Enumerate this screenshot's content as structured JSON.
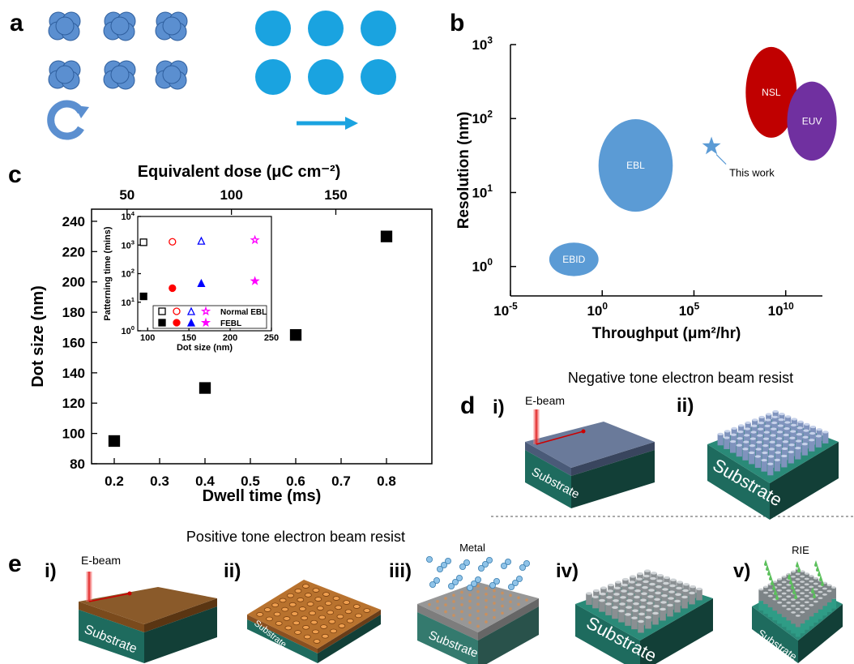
{
  "panel_labels": [
    "a",
    "b",
    "c",
    "d",
    "e"
  ],
  "chart_data": [
    {
      "type": "region",
      "xlabel": "Throughput (μm²/hr)",
      "ylabel": "Resolution (nm)",
      "xscale": "log",
      "yscale": "log",
      "xlim": [
        1e-05,
        1000000000000
      ],
      "ylim": [
        0.4,
        1000
      ],
      "xticks": [
        {
          "value": 1e-05,
          "label": "10",
          "exponent": "-5"
        },
        {
          "value": 1,
          "label": "10",
          "exponent": "0"
        },
        {
          "value": 100000,
          "label": "10",
          "exponent": "5"
        },
        {
          "value": 10000000000,
          "label": "10",
          "exponent": "10"
        }
      ],
      "yticks": [
        {
          "value": 1,
          "label": "10",
          "exponent": "0"
        },
        {
          "value": 10,
          "label": "10",
          "exponent": "1"
        },
        {
          "value": 100,
          "label": "10",
          "exponent": "2"
        },
        {
          "value": 1000,
          "label": "10",
          "exponent": "3"
        }
      ],
      "regions": [
        {
          "name": "EBID",
          "color": "#5b9bd5",
          "xrange": [
            0.0013,
            0.63
          ],
          "yrange": [
            0.74,
            2.1
          ]
        },
        {
          "name": "EBL",
          "color": "#5b9bd5",
          "xrange": [
            0.63,
            7000
          ],
          "yrange": [
            5.5,
            98
          ]
        },
        {
          "name": "NSL",
          "color": "#c00000",
          "xrange": [
            66000000,
            40000000000
          ],
          "yrange": [
            55,
            930
          ]
        },
        {
          "name": "EUV",
          "color": "#7030a0",
          "xrange": [
            12000000000,
            6000000000000
          ],
          "yrange": [
            27,
            316
          ]
        }
      ],
      "points": [
        {
          "name": "This work",
          "color": "#5b9bd5",
          "marker": "star",
          "x": 900000,
          "y": 42
        }
      ]
    },
    {
      "type": "scatter",
      "xlabel": "Dwell time (ms)",
      "ylabel": "Dot size (nm)",
      "x2label": "Equivalent dose (μC cm⁻²)",
      "xlim": [
        0.15,
        0.9
      ],
      "ylim": [
        80,
        248
      ],
      "xticks": [
        0.2,
        0.3,
        0.4,
        0.5,
        0.6,
        0.7,
        0.8
      ],
      "yticks": [
        80,
        100,
        120,
        140,
        160,
        180,
        200,
        220,
        240
      ],
      "x2lim": [
        33,
        196
      ],
      "x2ticks": [
        50,
        100,
        150
      ],
      "x": [
        0.2,
        0.4,
        0.6,
        0.8
      ],
      "values": [
        95,
        130,
        165,
        230
      ],
      "color": "#000000",
      "marker": "square"
    },
    {
      "type": "scatter",
      "xlabel": "Dot size (nm)",
      "ylabel": "Patterning time (mins)",
      "yscale": "log",
      "xlim": [
        88,
        250
      ],
      "ylim": [
        1,
        10000
      ],
      "xticks": [
        100,
        150,
        200,
        250
      ],
      "yticks": [
        {
          "value": 1,
          "label": "10",
          "exponent": "0"
        },
        {
          "value": 10,
          "label": "10",
          "exponent": "1"
        },
        {
          "value": 100,
          "label": "10",
          "exponent": "2"
        },
        {
          "value": 1000,
          "label": "10",
          "exponent": "3"
        },
        {
          "value": 10000,
          "label": "10",
          "exponent": "4"
        }
      ],
      "markers": [
        "square",
        "circle",
        "triangle",
        "star"
      ],
      "colors": [
        "#000000",
        "#ff0000",
        "#0000ff",
        "#ff00ff"
      ],
      "series": [
        {
          "name": "Normal EBL",
          "filled": false,
          "x": [
            95,
            130,
            165,
            230
          ],
          "values": [
            1250,
            1300,
            1400,
            1500
          ]
        },
        {
          "name": "FEBL",
          "filled": true,
          "x": [
            95,
            130,
            165,
            230
          ],
          "values": [
            16,
            31,
            46,
            55
          ]
        }
      ]
    }
  ],
  "panel_d": {
    "title": "Negative tone electron beam resist",
    "steps": [
      "i)",
      "ii)"
    ],
    "beam": "E-beam",
    "substrate": [
      "Substrate",
      "Substrate"
    ]
  },
  "panel_e": {
    "title": "Positive tone electron beam resist",
    "steps": [
      "i)",
      "ii)",
      "iii)",
      "iv)",
      "v)"
    ],
    "beam": "E-beam",
    "metal": "Metal",
    "etch": "RIE",
    "substrate": [
      "Substrate",
      "Substrate",
      "Substrate",
      "Substrate",
      "Substrate"
    ]
  }
}
